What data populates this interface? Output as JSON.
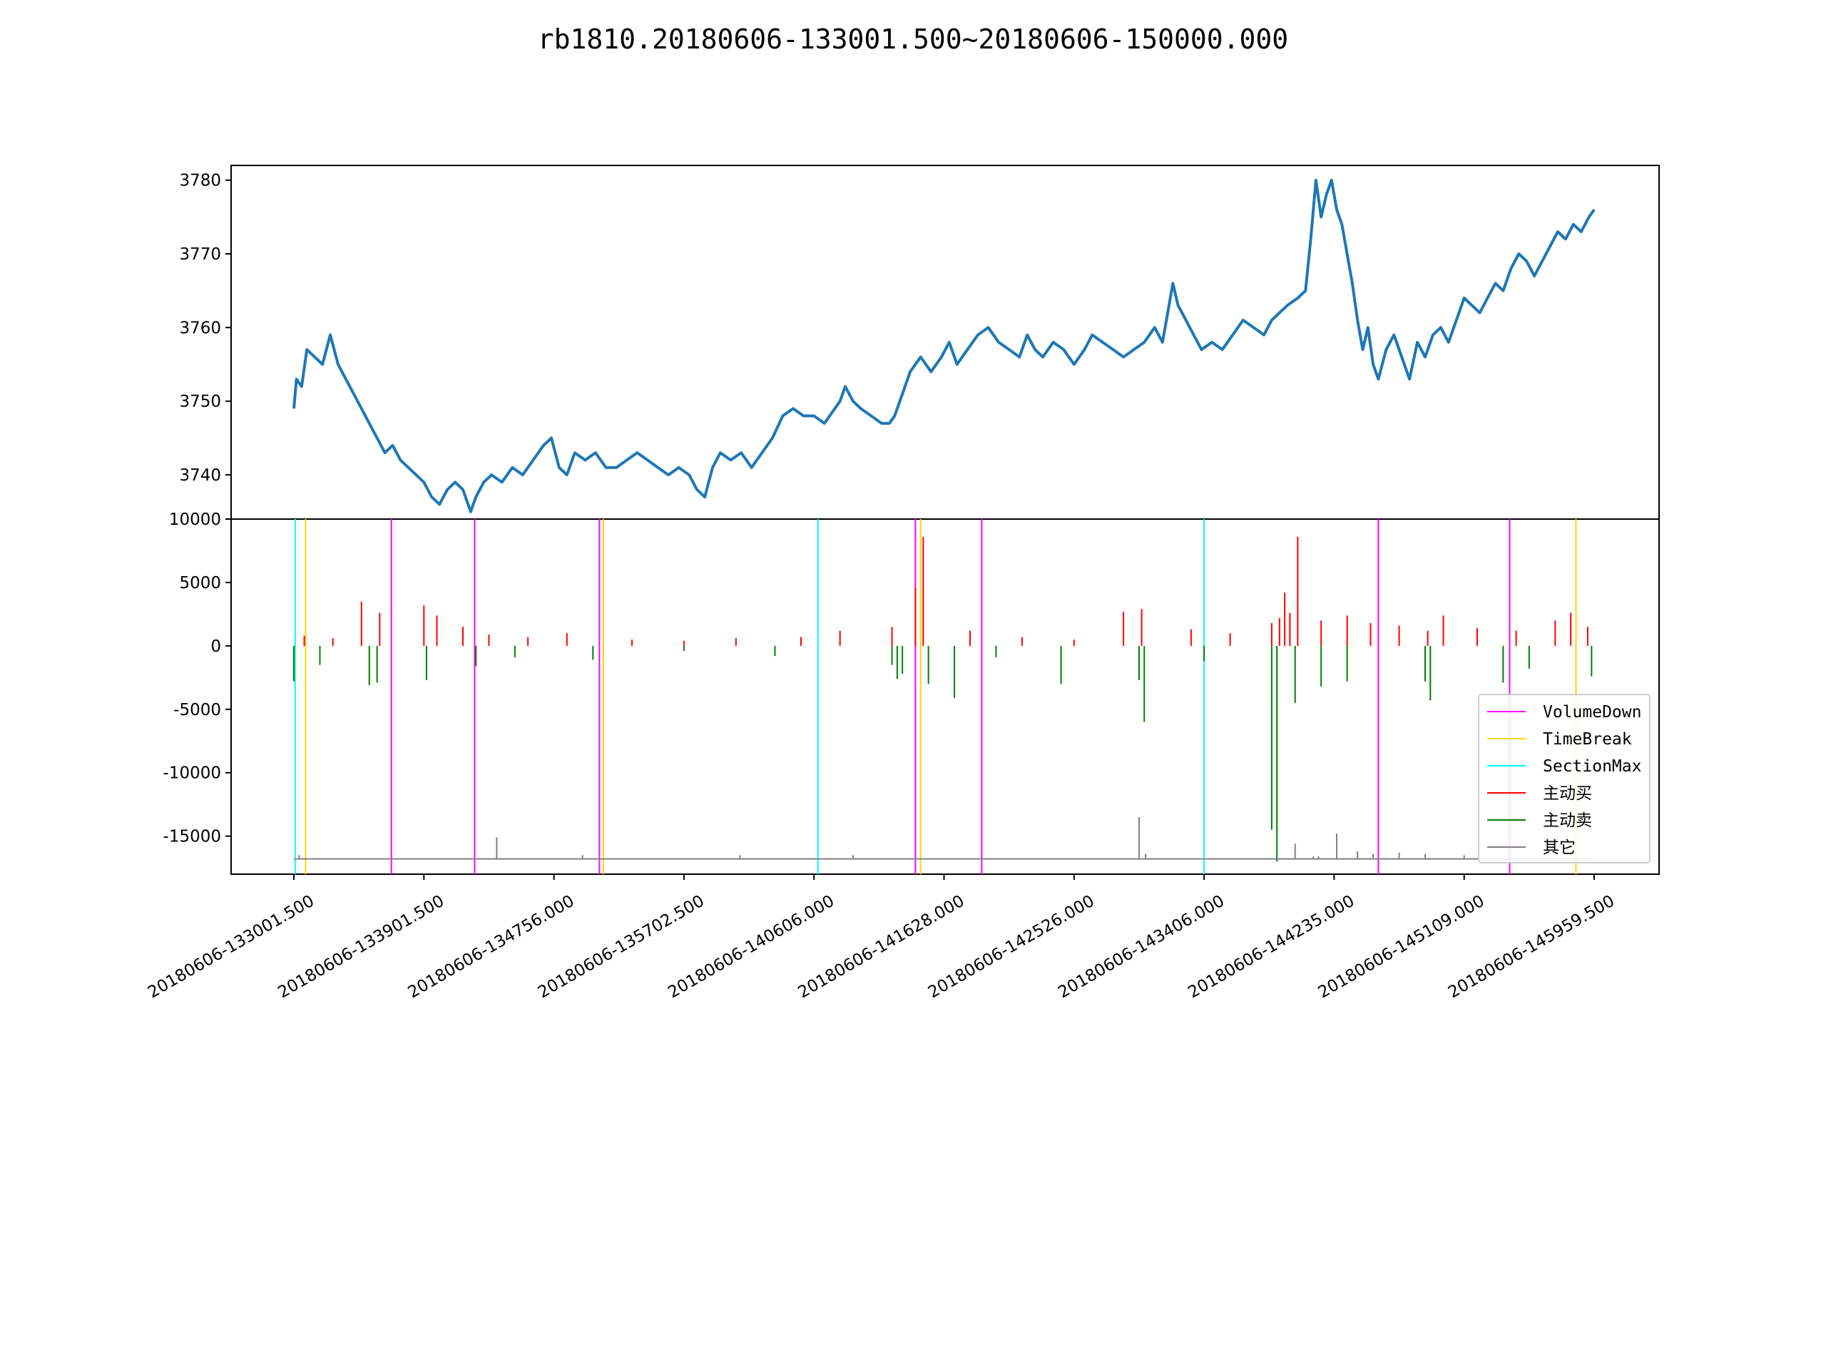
{
  "chart_data": [
    {
      "type": "line",
      "title": "rb1810.20180606-133001.500~20180606-150000.000",
      "xlabel": "",
      "ylabel": "",
      "ylim": [
        3734,
        3782
      ],
      "yticks": [
        3740,
        3750,
        3760,
        3770,
        3780
      ],
      "grid": false,
      "x_index_range": [
        0,
        1000
      ],
      "series": [
        {
          "color": "#1f77b4",
          "points": [
            [
              0,
              3749
            ],
            [
              2,
              3753
            ],
            [
              6,
              3752
            ],
            [
              10,
              3757
            ],
            [
              16,
              3756
            ],
            [
              22,
              3755
            ],
            [
              28,
              3759
            ],
            [
              34,
              3755
            ],
            [
              40,
              3753
            ],
            [
              46,
              3751
            ],
            [
              52,
              3749
            ],
            [
              58,
              3747
            ],
            [
              64,
              3745
            ],
            [
              70,
              3743
            ],
            [
              76,
              3744
            ],
            [
              82,
              3742
            ],
            [
              88,
              3741
            ],
            [
              94,
              3740
            ],
            [
              100,
              3739
            ],
            [
              106,
              3737
            ],
            [
              112,
              3736
            ],
            [
              118,
              3738
            ],
            [
              124,
              3739
            ],
            [
              130,
              3738
            ],
            [
              136,
              3735
            ],
            [
              140,
              3737
            ],
            [
              146,
              3739
            ],
            [
              152,
              3740
            ],
            [
              160,
              3739
            ],
            [
              168,
              3741
            ],
            [
              176,
              3740
            ],
            [
              184,
              3742
            ],
            [
              192,
              3744
            ],
            [
              198,
              3745
            ],
            [
              204,
              3741
            ],
            [
              210,
              3740
            ],
            [
              216,
              3743
            ],
            [
              224,
              3742
            ],
            [
              232,
              3743
            ],
            [
              240,
              3741
            ],
            [
              248,
              3741
            ],
            [
              256,
              3742
            ],
            [
              264,
              3743
            ],
            [
              272,
              3742
            ],
            [
              280,
              3741
            ],
            [
              288,
              3740
            ],
            [
              296,
              3741
            ],
            [
              304,
              3740
            ],
            [
              310,
              3738
            ],
            [
              316,
              3737
            ],
            [
              322,
              3741
            ],
            [
              328,
              3743
            ],
            [
              336,
              3742
            ],
            [
              344,
              3743
            ],
            [
              352,
              3741
            ],
            [
              360,
              3743
            ],
            [
              368,
              3745
            ],
            [
              376,
              3748
            ],
            [
              384,
              3749
            ],
            [
              392,
              3748
            ],
            [
              400,
              3748
            ],
            [
              408,
              3747
            ],
            [
              416,
              3749
            ],
            [
              420,
              3750
            ],
            [
              424,
              3752
            ],
            [
              430,
              3750
            ],
            [
              436,
              3749
            ],
            [
              444,
              3748
            ],
            [
              452,
              3747
            ],
            [
              458,
              3747
            ],
            [
              462,
              3748
            ],
            [
              468,
              3751
            ],
            [
              474,
              3754
            ],
            [
              482,
              3756
            ],
            [
              490,
              3754
            ],
            [
              498,
              3756
            ],
            [
              504,
              3758
            ],
            [
              510,
              3755
            ],
            [
              518,
              3757
            ],
            [
              526,
              3759
            ],
            [
              534,
              3760
            ],
            [
              542,
              3758
            ],
            [
              550,
              3757
            ],
            [
              558,
              3756
            ],
            [
              564,
              3759
            ],
            [
              570,
              3757
            ],
            [
              576,
              3756
            ],
            [
              584,
              3758
            ],
            [
              592,
              3757
            ],
            [
              600,
              3755
            ],
            [
              608,
              3757
            ],
            [
              614,
              3759
            ],
            [
              622,
              3758
            ],
            [
              630,
              3757
            ],
            [
              638,
              3756
            ],
            [
              646,
              3757
            ],
            [
              654,
              3758
            ],
            [
              662,
              3760
            ],
            [
              668,
              3758
            ],
            [
              672,
              3762
            ],
            [
              676,
              3766
            ],
            [
              680,
              3763
            ],
            [
              686,
              3761
            ],
            [
              692,
              3759
            ],
            [
              698,
              3757
            ],
            [
              706,
              3758
            ],
            [
              714,
              3757
            ],
            [
              722,
              3759
            ],
            [
              730,
              3761
            ],
            [
              738,
              3760
            ],
            [
              746,
              3759
            ],
            [
              752,
              3761
            ],
            [
              758,
              3762
            ],
            [
              764,
              3763
            ],
            [
              772,
              3764
            ],
            [
              778,
              3765
            ],
            [
              782,
              3772
            ],
            [
              786,
              3780
            ],
            [
              790,
              3775
            ],
            [
              794,
              3778
            ],
            [
              798,
              3780
            ],
            [
              802,
              3776
            ],
            [
              806,
              3774
            ],
            [
              810,
              3770
            ],
            [
              814,
              3766
            ],
            [
              818,
              3761
            ],
            [
              822,
              3757
            ],
            [
              826,
              3760
            ],
            [
              830,
              3755
            ],
            [
              834,
              3753
            ],
            [
              840,
              3757
            ],
            [
              846,
              3759
            ],
            [
              852,
              3756
            ],
            [
              858,
              3753
            ],
            [
              864,
              3758
            ],
            [
              870,
              3756
            ],
            [
              876,
              3759
            ],
            [
              882,
              3760
            ],
            [
              888,
              3758
            ],
            [
              894,
              3761
            ],
            [
              900,
              3764
            ],
            [
              906,
              3763
            ],
            [
              912,
              3762
            ],
            [
              918,
              3764
            ],
            [
              924,
              3766
            ],
            [
              930,
              3765
            ],
            [
              936,
              3768
            ],
            [
              942,
              3770
            ],
            [
              948,
              3769
            ],
            [
              954,
              3767
            ],
            [
              960,
              3769
            ],
            [
              966,
              3771
            ],
            [
              972,
              3773
            ],
            [
              978,
              3772
            ],
            [
              984,
              3774
            ],
            [
              990,
              3773
            ],
            [
              996,
              3775
            ],
            [
              1000,
              3776
            ]
          ]
        }
      ]
    },
    {
      "type": "bar",
      "xlabel": "",
      "ylabel": "",
      "ylim": [
        -18000,
        10000
      ],
      "yticks": [
        10000,
        5000,
        0,
        -5000,
        -10000,
        -15000
      ],
      "grid": false,
      "x_index_range": [
        0,
        1000
      ],
      "legend_position": "lower right",
      "xtick_labels": [
        "20180606-133001.500",
        "20180606-133901.500",
        "20180606-134756.000",
        "20180606-135702.500",
        "20180606-140606.000",
        "20180606-141628.000",
        "20180606-142526.000",
        "20180606-143406.000",
        "20180606-144235.000",
        "20180606-145109.000",
        "20180606-145959.500"
      ],
      "xtick_positions": [
        0,
        100,
        200,
        300,
        400,
        500,
        600,
        700,
        800,
        900,
        1000
      ],
      "vlines": [
        {
          "name": "VolumeDown",
          "color": "#ff00ff",
          "x": [
            75,
            139,
            235,
            478,
            529,
            834,
            935
          ]
        },
        {
          "name": "TimeBreak",
          "color": "#ffd700",
          "x": [
            9,
            238,
            482,
            986
          ]
        },
        {
          "name": "SectionMax",
          "color": "#00ffff",
          "x": [
            1,
            403,
            700
          ]
        }
      ],
      "series": [
        {
          "name": "主动买",
          "color": "#ff0000",
          "bars": [
            [
              8,
              800
            ],
            [
              30,
              600
            ],
            [
              52,
              3500
            ],
            [
              66,
              2600
            ],
            [
              100,
              3200
            ],
            [
              110,
              2400
            ],
            [
              130,
              1500
            ],
            [
              150,
              900
            ],
            [
              180,
              700
            ],
            [
              210,
              1000
            ],
            [
              260,
              500
            ],
            [
              300,
              400
            ],
            [
              340,
              600
            ],
            [
              390,
              700
            ],
            [
              420,
              1200
            ],
            [
              460,
              1500
            ],
            [
              478,
              4600
            ],
            [
              484,
              8600
            ],
            [
              520,
              1200
            ],
            [
              560,
              700
            ],
            [
              600,
              500
            ],
            [
              638,
              2700
            ],
            [
              652,
              2900
            ],
            [
              690,
              1300
            ],
            [
              720,
              1000
            ],
            [
              752,
              1800
            ],
            [
              758,
              2200
            ],
            [
              762,
              4200
            ],
            [
              766,
              2600
            ],
            [
              772,
              8600
            ],
            [
              790,
              2000
            ],
            [
              810,
              2400
            ],
            [
              828,
              1800
            ],
            [
              850,
              1600
            ],
            [
              872,
              1200
            ],
            [
              884,
              2400
            ],
            [
              910,
              1400
            ],
            [
              940,
              1200
            ],
            [
              970,
              2000
            ],
            [
              982,
              2600
            ],
            [
              995,
              1500
            ]
          ]
        },
        {
          "name": "主动卖",
          "color": "#008000",
          "bars": [
            [
              0,
              -2800
            ],
            [
              20,
              -1500
            ],
            [
              58,
              -3100
            ],
            [
              64,
              -2900
            ],
            [
              102,
              -2700
            ],
            [
              140,
              -1600
            ],
            [
              170,
              -900
            ],
            [
              230,
              -1100
            ],
            [
              300,
              -400
            ],
            [
              370,
              -800
            ],
            [
              460,
              -1500
            ],
            [
              464,
              -2600
            ],
            [
              468,
              -2200
            ],
            [
              488,
              -3000
            ],
            [
              508,
              -4100
            ],
            [
              540,
              -900
            ],
            [
              590,
              -3000
            ],
            [
              650,
              -2700
            ],
            [
              654,
              -6000
            ],
            [
              700,
              -1200
            ],
            [
              752,
              -14500
            ],
            [
              756,
              -17000
            ],
            [
              770,
              -4500
            ],
            [
              790,
              -3200
            ],
            [
              810,
              -2800
            ],
            [
              870,
              -2800
            ],
            [
              874,
              -4300
            ],
            [
              930,
              -2900
            ],
            [
              950,
              -1800
            ],
            [
              998,
              -2400
            ]
          ]
        },
        {
          "name": "其它",
          "color": "#808080",
          "baseline": -16800,
          "bars": [
            [
              4,
              -16500
            ],
            [
              156,
              -15100
            ],
            [
              222,
              -16500
            ],
            [
              343,
              -16500
            ],
            [
              430,
              -16500
            ],
            [
              650,
              -13500
            ],
            [
              655,
              -16400
            ],
            [
              770,
              -15600
            ],
            [
              784,
              -16600
            ],
            [
              788,
              -16600
            ],
            [
              802,
              -14800
            ],
            [
              818,
              -16200
            ],
            [
              830,
              -16400
            ],
            [
              850,
              -16300
            ],
            [
              870,
              -16400
            ],
            [
              900,
              -16500
            ]
          ]
        }
      ],
      "legend": [
        "VolumeDown",
        "TimeBreak",
        "SectionMax",
        "主动买",
        "主动卖",
        "其它"
      ]
    }
  ]
}
